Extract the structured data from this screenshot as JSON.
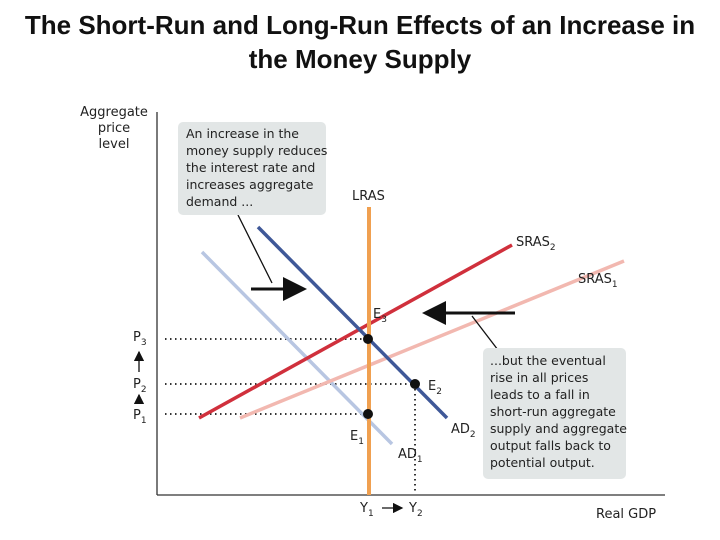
{
  "title": {
    "line1": "The Short-Run and Long-Run Effects of an Increase in",
    "line2": "the Money Supply"
  },
  "axes": {
    "y_label_lines": [
      "Aggregate",
      "price",
      "level"
    ],
    "x_label": "Real GDP"
  },
  "curves": {
    "lras": "LRAS",
    "sras2": {
      "base": "SRAS",
      "sub": "2"
    },
    "sras1": {
      "base": "SRAS",
      "sub": "1"
    },
    "ad2": {
      "base": "AD",
      "sub": "2"
    },
    "ad1": {
      "base": "AD",
      "sub": "1"
    }
  },
  "points": {
    "e3": {
      "base": "E",
      "sub": "3"
    },
    "e2": {
      "base": "E",
      "sub": "2"
    },
    "e1": {
      "base": "E",
      "sub": "1"
    }
  },
  "ticks": {
    "p3": {
      "base": "P",
      "sub": "3"
    },
    "p2": {
      "base": "P",
      "sub": "2"
    },
    "p1": {
      "base": "P",
      "sub": "1"
    },
    "y1": {
      "base": "Y",
      "sub": "1"
    },
    "y2": {
      "base": "Y",
      "sub": "2"
    }
  },
  "annotations": {
    "demand_note": [
      "An increase in the",
      "money supply reduces",
      "the interest rate and",
      "increases aggregate",
      "demand ..."
    ],
    "supply_note": [
      "...but the eventual",
      "rise in all prices",
      "leads to a fall in",
      "short-run aggregate",
      "supply and aggregate",
      "output falls back to",
      "potential output."
    ]
  },
  "colors": {
    "lras": "#f0a050",
    "ad2": "#3f5898",
    "ad1": "#b8c6e2",
    "sras2": "#d0303c",
    "sras1": "#f2b8b0",
    "note_box": "#e2e6e6",
    "axis": "#333333"
  }
}
